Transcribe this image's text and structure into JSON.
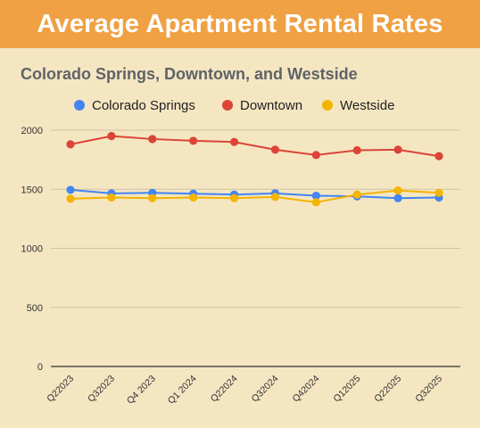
{
  "banner": {
    "title": "Average Apartment Rental Rates"
  },
  "colors": {
    "banner_bg": "#f0a143",
    "chart_bg": "#f5e6c2",
    "grid": "#cfc3a6",
    "series": [
      "#4285f4",
      "#db4437",
      "#f4b400"
    ]
  },
  "chart_data": {
    "type": "line",
    "title": "Colorado Springs, Downtown, and Westside",
    "xlabel": "",
    "ylabel": "",
    "ylim": [
      0,
      2000
    ],
    "yticks": [
      0,
      500,
      1000,
      1500,
      2000
    ],
    "grid": true,
    "legend_position": "top",
    "categories": [
      "Q22023",
      "Q32023",
      "Q4 2023",
      "Q1 2024",
      "Q22024",
      "Q32024",
      "Q42024",
      "Q12025",
      "Q22025",
      "Q32025"
    ],
    "series": [
      {
        "name": "Colorado Springs",
        "color": "#4285f4",
        "values": [
          1495,
          1465,
          1470,
          1462,
          1455,
          1465,
          1445,
          1440,
          1425,
          1430
        ]
      },
      {
        "name": "Downtown",
        "color": "#db4437",
        "values": [
          1880,
          1950,
          1925,
          1910,
          1900,
          1835,
          1790,
          1830,
          1835,
          1780
        ]
      },
      {
        "name": "Westside",
        "color": "#f4b400",
        "values": [
          1420,
          1430,
          1425,
          1430,
          1425,
          1435,
          1390,
          1455,
          1490,
          1470
        ]
      }
    ]
  }
}
